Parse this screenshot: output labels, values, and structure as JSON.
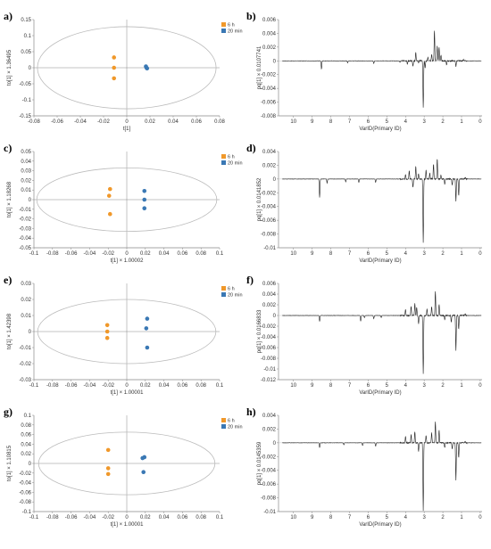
{
  "colors": {
    "g6h": "#f0982a",
    "g20": "#3a78b4",
    "axis": "#888888",
    "ellipse": "#bbbbbb",
    "spectrum": "#222222"
  },
  "legend": {
    "g6h": "6 h",
    "g20": "20 min"
  },
  "score_plots": [
    {
      "panel": "a)",
      "type": "scatter",
      "xlabel": "t[1]",
      "ylabel": "to[1] × 1.36495",
      "xlim": [
        -0.08,
        0.08
      ],
      "ylim": [
        -0.15,
        0.15
      ],
      "xticks": [
        "-0.08",
        "-0.06",
        "-0.04",
        "-0.02",
        "0",
        "0.02",
        "0.04",
        "0.06",
        "0.08"
      ],
      "xtick_values": [
        -0.08,
        -0.06,
        -0.04,
        -0.02,
        0,
        0.02,
        0.04,
        0.06,
        0.08
      ],
      "yticks": [
        "-0.15",
        "-0.1",
        "-0.05",
        "0",
        "0.05",
        "0.1",
        "0.15"
      ],
      "ytick_values": [
        -0.15,
        -0.1,
        -0.05,
        0,
        0.05,
        0.1,
        0.15
      ],
      "ellipse": {
        "rx": 0.077,
        "ry": 0.128
      },
      "series": [
        {
          "name": "6 h",
          "points": [
            [
              -0.011,
              0.032
            ],
            [
              -0.011,
              0.0
            ],
            [
              -0.011,
              -0.033
            ]
          ]
        },
        {
          "name": "20 min",
          "points": [
            [
              0.0165,
              0.004
            ],
            [
              0.017,
              0.0
            ],
            [
              0.0175,
              -0.002
            ]
          ]
        }
      ]
    },
    {
      "panel": "c)",
      "type": "scatter",
      "xlabel": "t[1] × 1.00002",
      "ylabel": "to[1] × 1.18268",
      "xlim": [
        -0.1,
        0.1
      ],
      "ylim": [
        -0.05,
        0.05
      ],
      "xticks": [
        "-0.1",
        "-0.08",
        "-0.06",
        "-0.04",
        "-0.02",
        "0",
        "0.02",
        "0.04",
        "0.06",
        "0.08",
        "0.1"
      ],
      "xtick_values": [
        -0.1,
        -0.08,
        -0.06,
        -0.04,
        -0.02,
        0,
        0.02,
        0.04,
        0.06,
        0.08,
        0.1
      ],
      "yticks": [
        "-0.05",
        "-0.04",
        "-0.03",
        "-0.02",
        "-0.01",
        "0",
        "0.01",
        "0.02",
        "0.03",
        "0.04",
        "0.05"
      ],
      "ytick_values": [
        -0.05,
        -0.04,
        -0.03,
        -0.02,
        -0.01,
        0,
        0.01,
        0.02,
        0.03,
        0.04,
        0.05
      ],
      "ellipse": {
        "rx": 0.097,
        "ry": 0.033
      },
      "series": [
        {
          "name": "6 h",
          "points": [
            [
              -0.018,
              0.011
            ],
            [
              -0.019,
              0.004
            ],
            [
              -0.018,
              -0.015
            ]
          ]
        },
        {
          "name": "20 min",
          "points": [
            [
              0.019,
              0.009
            ],
            [
              0.019,
              0.0
            ],
            [
              0.019,
              -0.009
            ]
          ]
        }
      ]
    },
    {
      "panel": "e)",
      "type": "scatter",
      "xlabel": "t[1] × 1.00001",
      "ylabel": "to[1] × 1.42398",
      "xlim": [
        -0.1,
        0.1
      ],
      "ylim": [
        -0.03,
        0.03
      ],
      "xticks": [
        "-0.1",
        "-0.08",
        "-0.06",
        "-0.04",
        "-0.02",
        "0",
        "0.02",
        "0.04",
        "0.06",
        "0.08",
        "0.1"
      ],
      "xtick_values": [
        -0.1,
        -0.08,
        -0.06,
        -0.04,
        -0.02,
        0,
        0.02,
        0.04,
        0.06,
        0.08,
        0.1
      ],
      "yticks": [
        "-0.03",
        "-0.02",
        "-0.01",
        "0",
        "0.01",
        "0.02",
        "0.03"
      ],
      "ytick_values": [
        -0.03,
        -0.02,
        -0.01,
        0,
        0.01,
        0.02,
        0.03
      ],
      "ellipse": {
        "rx": 0.096,
        "ry": 0.02
      },
      "series": [
        {
          "name": "6 h",
          "points": [
            [
              -0.021,
              0.004
            ],
            [
              -0.021,
              0.0
            ],
            [
              -0.021,
              -0.004
            ]
          ]
        },
        {
          "name": "20 min",
          "points": [
            [
              0.022,
              0.008
            ],
            [
              0.021,
              0.002
            ],
            [
              0.022,
              -0.01
            ]
          ]
        }
      ]
    },
    {
      "panel": "g)",
      "type": "scatter",
      "xlabel": "t[1] × 1.00001",
      "ylabel": "to[1] × 1.10815",
      "xlim": [
        -0.1,
        0.1
      ],
      "ylim": [
        -0.1,
        0.1
      ],
      "xticks": [
        "-0.1",
        "-0.08",
        "-0.06",
        "-0.04",
        "-0.02",
        "0",
        "0.02",
        "0.04",
        "0.06",
        "0.08",
        "0.1"
      ],
      "xtick_values": [
        -0.1,
        -0.08,
        -0.06,
        -0.04,
        -0.02,
        0,
        0.02,
        0.04,
        0.06,
        0.08,
        0.1
      ],
      "yticks": [
        "-0.1",
        "-0.08",
        "-0.06",
        "-0.04",
        "-0.02",
        "0",
        "0.02",
        "0.04",
        "0.06",
        "0.08",
        "0.1"
      ],
      "ytick_values": [
        -0.1,
        -0.08,
        -0.06,
        -0.04,
        -0.02,
        0,
        0.02,
        0.04,
        0.06,
        0.08,
        0.1
      ],
      "ellipse": {
        "rx": 0.095,
        "ry": 0.065
      },
      "series": [
        {
          "name": "6 h",
          "points": [
            [
              -0.02,
              0.028
            ],
            [
              -0.02,
              -0.01
            ],
            [
              -0.02,
              -0.022
            ]
          ]
        },
        {
          "name": "20 min",
          "points": [
            [
              0.017,
              0.011
            ],
            [
              0.019,
              0.013
            ],
            [
              0.018,
              -0.018
            ]
          ]
        }
      ]
    }
  ],
  "loading_plots": [
    {
      "panel": "b)",
      "type": "line",
      "xlabel": "VarID(Primary ID)",
      "ylabel": "pq[1] × 0.0107741",
      "xlim": [
        10.8,
        -0.1
      ],
      "ylim": [
        -0.008,
        0.006
      ],
      "xticks": [
        "10",
        "9",
        "8",
        "7",
        "6",
        "5",
        "4",
        "3",
        "2",
        "1",
        "0"
      ],
      "xtick_values": [
        10,
        9,
        8,
        7,
        6,
        5,
        4,
        3,
        2,
        1,
        0
      ],
      "yticks": [
        "-0.008",
        "-0.006",
        "-0.004",
        "-0.002",
        "0",
        "0.002",
        "0.004",
        "0.006"
      ],
      "ytick_values": [
        -0.008,
        -0.006,
        -0.004,
        -0.002,
        0,
        0.002,
        0.004,
        0.006
      ],
      "peaks": [
        [
          8.5,
          -0.0012
        ],
        [
          7.1,
          -0.0003
        ],
        [
          5.7,
          -0.0004
        ],
        [
          4.3,
          -0.0002
        ],
        [
          3.9,
          -0.0005
        ],
        [
          3.6,
          -0.0008
        ],
        [
          3.45,
          0.0012
        ],
        [
          3.3,
          -0.0003
        ],
        [
          3.05,
          -0.0068
        ],
        [
          2.95,
          -0.001
        ],
        [
          2.8,
          0.0006
        ],
        [
          2.6,
          0.0009
        ],
        [
          2.45,
          0.0045
        ],
        [
          2.3,
          0.0022
        ],
        [
          2.2,
          0.002
        ],
        [
          2.1,
          0.0008
        ],
        [
          1.8,
          -0.0006
        ],
        [
          1.3,
          -0.0008
        ],
        [
          0.9,
          0.0002
        ]
      ]
    },
    {
      "panel": "d)",
      "type": "line",
      "xlabel": "VarID(Primary ID)",
      "ylabel": "pq[1] × 0.0141852",
      "xlim": [
        10.8,
        -0.1
      ],
      "ylim": [
        -0.01,
        0.004
      ],
      "xticks": [
        "10",
        "9",
        "8",
        "7",
        "6",
        "5",
        "4",
        "3",
        "2",
        "1",
        "0"
      ],
      "xtick_values": [
        10,
        9,
        8,
        7,
        6,
        5,
        4,
        3,
        2,
        1,
        0
      ],
      "yticks": [
        "-0.01",
        "-0.008",
        "-0.006",
        "-0.004",
        "-0.002",
        "0",
        "0.002",
        "0.004"
      ],
      "ytick_values": [
        -0.01,
        -0.008,
        -0.006,
        -0.004,
        -0.002,
        0,
        0.002,
        0.004
      ],
      "peaks": [
        [
          8.6,
          -0.0027
        ],
        [
          8.2,
          -0.0006
        ],
        [
          7.2,
          -0.0004
        ],
        [
          6.5,
          -0.0005
        ],
        [
          5.6,
          -0.0005
        ],
        [
          4.0,
          0.0006
        ],
        [
          3.8,
          0.0012
        ],
        [
          3.6,
          -0.0012
        ],
        [
          3.45,
          0.0018
        ],
        [
          3.3,
          0.0008
        ],
        [
          3.05,
          -0.0093
        ],
        [
          2.9,
          0.0013
        ],
        [
          2.7,
          0.0009
        ],
        [
          2.5,
          0.0022
        ],
        [
          2.3,
          0.0029
        ],
        [
          2.1,
          0.0006
        ],
        [
          1.9,
          -0.0008
        ],
        [
          1.5,
          -0.0009
        ],
        [
          1.3,
          -0.0032
        ],
        [
          1.15,
          -0.0024
        ],
        [
          0.8,
          0.0002
        ]
      ]
    },
    {
      "panel": "f)",
      "type": "line",
      "xlabel": "VarID(Primary ID)",
      "ylabel": "pq[1] × 0.0166833",
      "xlim": [
        10.8,
        -0.1
      ],
      "ylim": [
        -0.012,
        0.006
      ],
      "xticks": [
        "10",
        "9",
        "8",
        "7",
        "6",
        "5",
        "4",
        "3",
        "2",
        "1",
        "0"
      ],
      "xtick_values": [
        10,
        9,
        8,
        7,
        6,
        5,
        4,
        3,
        2,
        1,
        0
      ],
      "yticks": [
        "-0.012",
        "-0.01",
        "-0.008",
        "-0.006",
        "-0.004",
        "-0.002",
        "0",
        "0.002",
        "0.004",
        "0.006"
      ],
      "ytick_values": [
        -0.012,
        -0.01,
        -0.008,
        -0.006,
        -0.004,
        -0.002,
        0,
        0.002,
        0.004,
        0.006
      ],
      "peaks": [
        [
          8.6,
          -0.0011
        ],
        [
          6.4,
          -0.0011
        ],
        [
          6.2,
          -0.0004
        ],
        [
          5.7,
          -0.0006
        ],
        [
          5.3,
          -0.0004
        ],
        [
          4.0,
          0.0012
        ],
        [
          3.7,
          0.0018
        ],
        [
          3.5,
          0.0023
        ],
        [
          3.4,
          0.0016
        ],
        [
          3.3,
          -0.0016
        ],
        [
          3.05,
          -0.011
        ],
        [
          2.85,
          0.0012
        ],
        [
          2.6,
          0.0017
        ],
        [
          2.4,
          0.0046
        ],
        [
          2.2,
          0.0021
        ],
        [
          1.9,
          -0.0008
        ],
        [
          1.55,
          -0.0012
        ],
        [
          1.3,
          -0.0065
        ],
        [
          1.15,
          -0.0025
        ],
        [
          0.8,
          0.0003
        ]
      ]
    },
    {
      "panel": "h)",
      "type": "line",
      "xlabel": "VarID(Primary ID)",
      "ylabel": "pq[1] × 0.0145359",
      "xlim": [
        10.8,
        -0.1
      ],
      "ylim": [
        -0.01,
        0.004
      ],
      "xticks": [
        "10",
        "9",
        "8",
        "7",
        "6",
        "5",
        "4",
        "3",
        "2",
        "1",
        "0"
      ],
      "xtick_values": [
        10,
        9,
        8,
        7,
        6,
        5,
        4,
        3,
        2,
        1,
        0
      ],
      "yticks": [
        "-0.01",
        "-0.008",
        "-0.006",
        "-0.004",
        "-0.002",
        "0",
        "0.002",
        "0.004"
      ],
      "ytick_values": [
        -0.01,
        -0.008,
        -0.006,
        -0.004,
        -0.002,
        0,
        0.002,
        0.004
      ],
      "peaks": [
        [
          8.6,
          -0.0007
        ],
        [
          7.3,
          -0.0003
        ],
        [
          6.3,
          -0.0004
        ],
        [
          5.6,
          -0.0005
        ],
        [
          4.0,
          0.0009
        ],
        [
          3.7,
          0.0012
        ],
        [
          3.5,
          0.0016
        ],
        [
          3.3,
          -0.0012
        ],
        [
          3.05,
          -0.0098
        ],
        [
          2.9,
          0.0011
        ],
        [
          2.6,
          0.0015
        ],
        [
          2.4,
          0.0031
        ],
        [
          2.2,
          0.0018
        ],
        [
          1.9,
          -0.0007
        ],
        [
          1.5,
          -0.0009
        ],
        [
          1.3,
          -0.0054
        ],
        [
          1.15,
          -0.0022
        ],
        [
          0.8,
          0.0002
        ]
      ]
    }
  ]
}
